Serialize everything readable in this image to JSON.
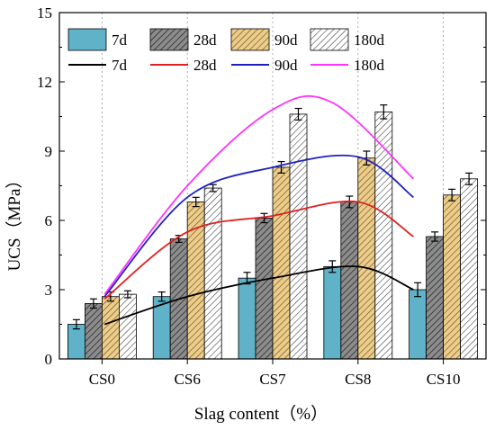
{
  "chart_data": {
    "type": "bar",
    "xlabel": "Slag content（%）",
    "ylabel": "UCS（MPa）",
    "ylim": [
      0,
      15
    ],
    "yticks": [
      0,
      3,
      6,
      9,
      12,
      15
    ],
    "categories": [
      "CS0",
      "CS6",
      "CS7",
      "CS8",
      "CS10"
    ],
    "grid": "vertical dotted at categories",
    "legend_position": "top, inside plot",
    "bar_series": [
      {
        "name": "7d",
        "pattern": "solid-teal",
        "color": "#5fb2c7",
        "values": [
          1.5,
          2.7,
          3.5,
          4.0,
          3.0
        ],
        "errors": [
          0.2,
          0.2,
          0.25,
          0.25,
          0.3
        ]
      },
      {
        "name": "28d",
        "pattern": "gray-hatch",
        "color": "#8c8c8c",
        "values": [
          2.4,
          5.2,
          6.1,
          6.8,
          5.3
        ],
        "errors": [
          0.2,
          0.15,
          0.2,
          0.25,
          0.2
        ]
      },
      {
        "name": "90d",
        "pattern": "tan-hatch",
        "color": "#e6c07a",
        "values": [
          2.7,
          6.8,
          8.3,
          8.7,
          7.1
        ],
        "errors": [
          0.2,
          0.2,
          0.25,
          0.3,
          0.25
        ]
      },
      {
        "name": "180d",
        "pattern": "white-hatch",
        "color": "#ffffff",
        "values": [
          2.8,
          7.4,
          10.6,
          10.7,
          7.8
        ],
        "errors": [
          0.15,
          0.15,
          0.25,
          0.3,
          0.25
        ]
      }
    ],
    "line_series": [
      {
        "name": "7d",
        "color": "#000000",
        "x": [
          0.03,
          1.0,
          2.0,
          3.0,
          3.65
        ],
        "values": [
          1.5,
          2.7,
          3.5,
          4.0,
          3.0
        ]
      },
      {
        "name": "28d",
        "color": "#e02020",
        "x": [
          0.03,
          1.0,
          2.0,
          3.0,
          3.65
        ],
        "values": [
          2.6,
          5.5,
          6.2,
          6.8,
          5.3
        ]
      },
      {
        "name": "90d",
        "color": "#2020c0",
        "x": [
          0.03,
          1.0,
          2.0,
          3.0,
          3.65
        ],
        "values": [
          2.7,
          7.0,
          8.3,
          8.75,
          7.0
        ]
      },
      {
        "name": "180d",
        "color": "#ff33ff",
        "x": [
          0.03,
          1.0,
          2.0,
          2.7,
          3.65
        ],
        "values": [
          2.8,
          7.5,
          10.8,
          11.1,
          7.8
        ]
      }
    ]
  }
}
